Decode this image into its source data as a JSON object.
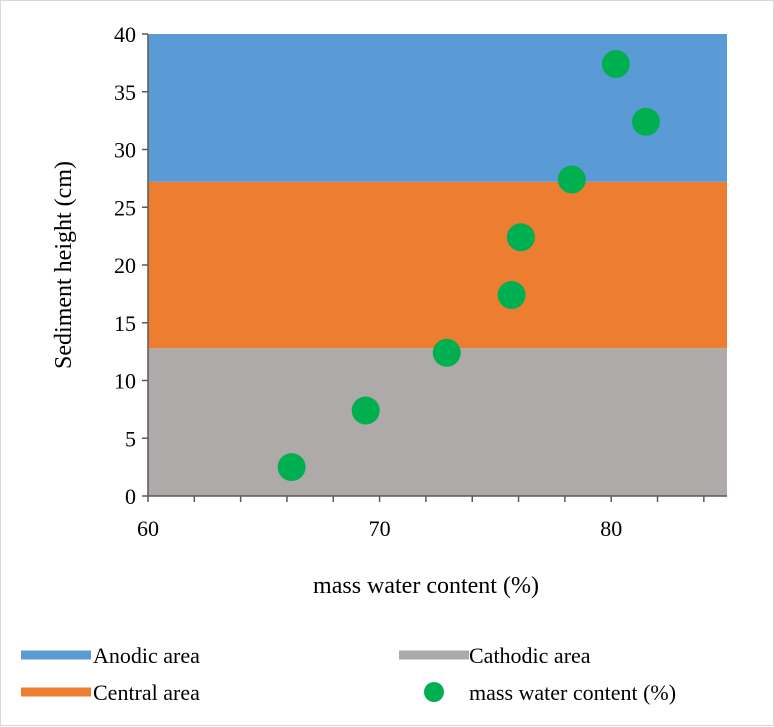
{
  "chart_data": {
    "type": "scatter",
    "xlabel": "mass water content (%)",
    "ylabel": "Sediment height (cm)",
    "xlim": [
      60,
      85
    ],
    "ylim": [
      0,
      40
    ],
    "x_ticks": [
      60,
      70,
      80
    ],
    "x_minor_step": 2,
    "y_ticks": [
      0,
      5,
      10,
      15,
      20,
      25,
      30,
      35,
      40
    ],
    "grid": false,
    "legend_position": "bottom",
    "areas": [
      {
        "name": "Cathodic area",
        "y_from": 0,
        "y_to": 12.8,
        "color": "#aeaaaa"
      },
      {
        "name": "Central area",
        "y_from": 12.8,
        "y_to": 27.2,
        "color": "#ed7d31"
      },
      {
        "name": "Anodic area",
        "y_from": 27.2,
        "y_to": 40,
        "color": "#5b9bd5"
      }
    ],
    "series": [
      {
        "name": "mass water content (%)",
        "color": "#00b050",
        "points": [
          {
            "x": 66.2,
            "y": 2.5
          },
          {
            "x": 69.4,
            "y": 7.4
          },
          {
            "x": 72.9,
            "y": 12.4
          },
          {
            "x": 75.7,
            "y": 17.4
          },
          {
            "x": 76.1,
            "y": 22.4
          },
          {
            "x": 78.3,
            "y": 27.4
          },
          {
            "x": 81.5,
            "y": 32.4
          },
          {
            "x": 80.2,
            "y": 37.4
          }
        ]
      }
    ],
    "legend": {
      "anodic": "Anodic area",
      "cathodic": "Cathodic area",
      "central": "Central area",
      "series": "mass water content (%)"
    }
  }
}
